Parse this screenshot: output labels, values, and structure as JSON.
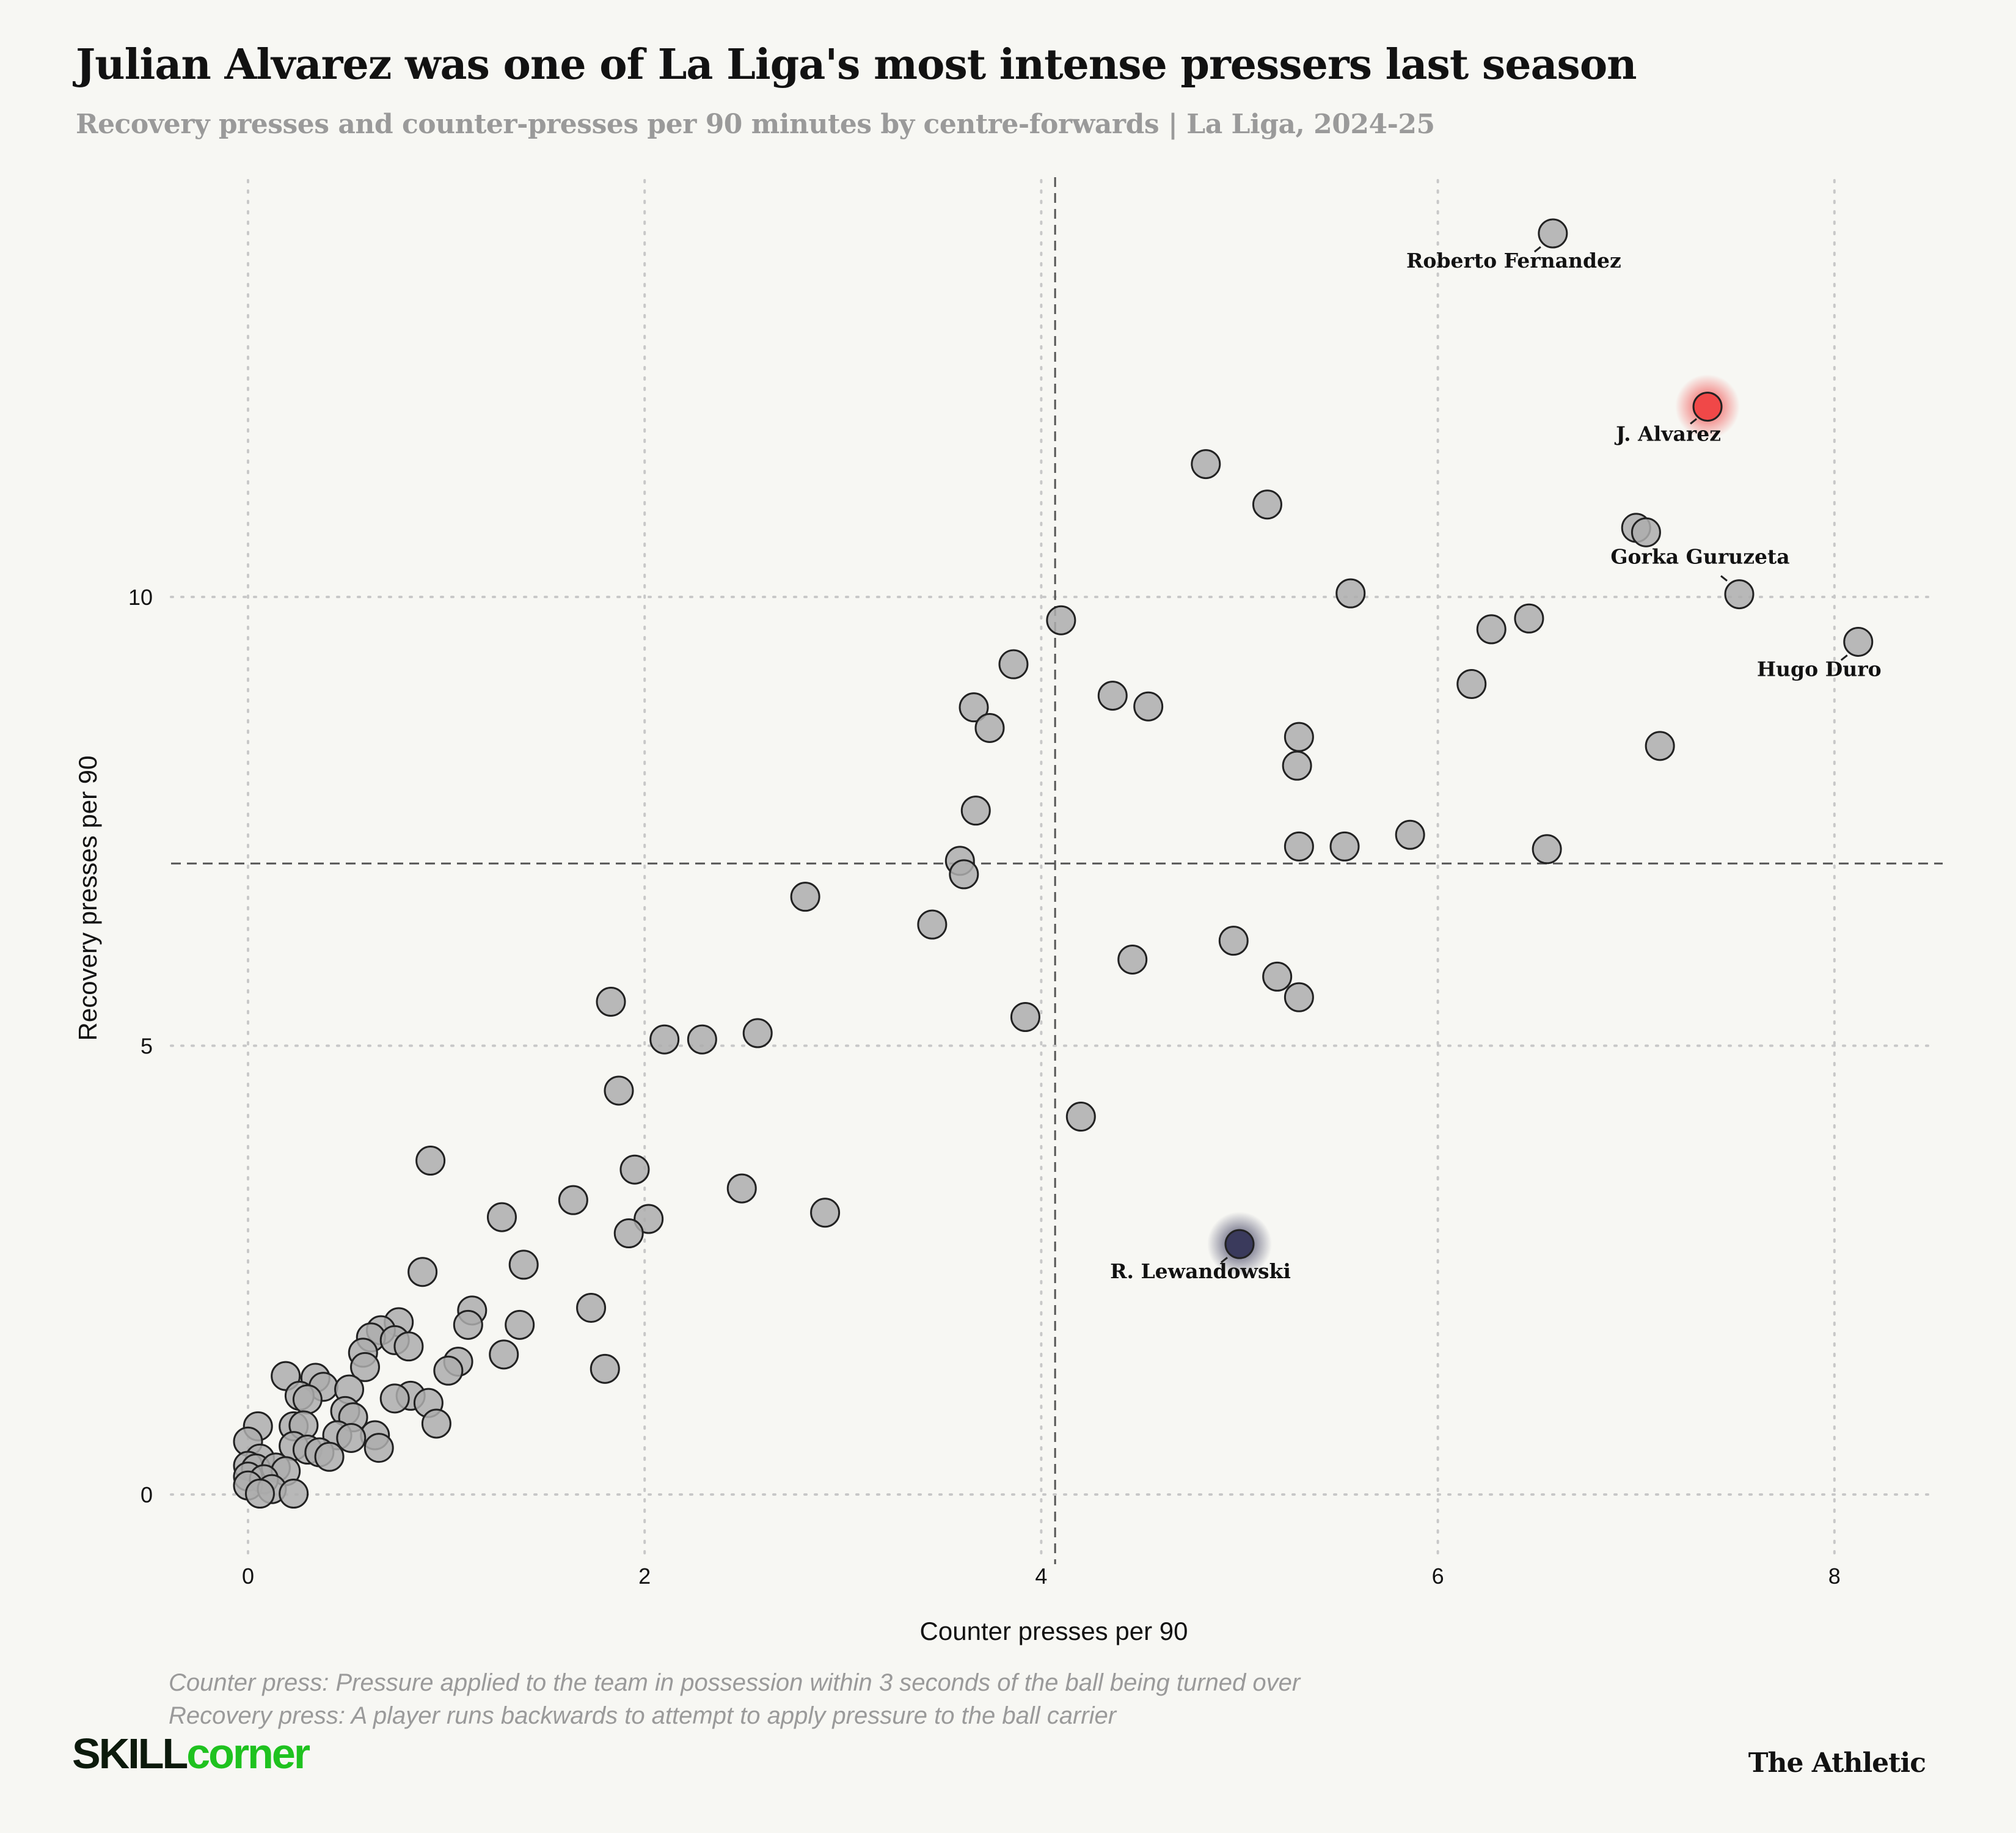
{
  "title": "Julian Alvarez was one of La Liga's most intense pressers last season",
  "subtitle": "Recovery presses and counter-presses per 90 minutes by centre-forwards | La Liga, 2024-25",
  "footnotes": [
    "Counter press: Pressure applied to the team in possession within 3 seconds of the ball being turned over",
    "Recovery press: A player runs backwards to attempt to apply pressure to the ball carrier"
  ],
  "logos": {
    "skillcorner_a": "SKILL",
    "skillcorner_b": "corner",
    "athletic": "The Athletic"
  },
  "colors": {
    "point": "#adadad",
    "highlight_red": "#f04848",
    "highlight_navy": "#3a3a5c",
    "brand_green": "#1fc21f"
  },
  "chart_data": {
    "type": "scatter",
    "xlabel": "Counter presses per 90",
    "ylabel": "Recovery presses per 90",
    "xlim": [
      -0.4,
      8.5
    ],
    "ylim": [
      -0.6,
      14.5
    ],
    "xticks": [
      0,
      2,
      4,
      6,
      8
    ],
    "yticks": [
      0,
      5,
      10
    ],
    "grid": true,
    "mean_lines": {
      "x": 4.07,
      "y": 7.03
    },
    "labeled_points": [
      {
        "name": "Roberto Fernandez",
        "x": 6.58,
        "y": 14.05,
        "highlight": "none"
      },
      {
        "name": "J. Alvarez",
        "x": 7.36,
        "y": 12.12,
        "highlight": "red"
      },
      {
        "name": "Gorka Guruzeta",
        "x": 7.52,
        "y": 10.03,
        "highlight": "none"
      },
      {
        "name": "Hugo Duro",
        "x": 8.12,
        "y": 9.5,
        "highlight": "none"
      },
      {
        "name": "R. Lewandowski",
        "x": 5.0,
        "y": 2.79,
        "highlight": "navy"
      }
    ],
    "points": [
      [
        4.83,
        11.48
      ],
      [
        5.14,
        11.03
      ],
      [
        7.0,
        10.77
      ],
      [
        7.05,
        10.72
      ],
      [
        5.56,
        10.04
      ],
      [
        6.46,
        9.76
      ],
      [
        6.27,
        9.64
      ],
      [
        4.1,
        9.74
      ],
      [
        3.86,
        9.25
      ],
      [
        6.17,
        9.03
      ],
      [
        4.36,
        8.9
      ],
      [
        4.54,
        8.78
      ],
      [
        3.66,
        8.77
      ],
      [
        3.74,
        8.54
      ],
      [
        5.3,
        8.44
      ],
      [
        5.29,
        8.12
      ],
      [
        7.12,
        8.34
      ],
      [
        3.67,
        7.62
      ],
      [
        5.86,
        7.35
      ],
      [
        5.3,
        7.22
      ],
      [
        5.53,
        7.22
      ],
      [
        6.55,
        7.19
      ],
      [
        3.59,
        7.06
      ],
      [
        3.61,
        6.91
      ],
      [
        2.81,
        6.66
      ],
      [
        3.45,
        6.35
      ],
      [
        4.97,
        6.17
      ],
      [
        4.46,
        5.96
      ],
      [
        5.19,
        5.77
      ],
      [
        5.3,
        5.54
      ],
      [
        1.83,
        5.49
      ],
      [
        3.92,
        5.32
      ],
      [
        2.1,
        5.07
      ],
      [
        2.29,
        5.07
      ],
      [
        2.57,
        5.14
      ],
      [
        1.87,
        4.5
      ],
      [
        4.2,
        4.21
      ],
      [
        0.92,
        3.72
      ],
      [
        1.95,
        3.62
      ],
      [
        2.49,
        3.41
      ],
      [
        1.64,
        3.28
      ],
      [
        1.28,
        3.09
      ],
      [
        2.91,
        3.14
      ],
      [
        2.02,
        3.07
      ],
      [
        1.92,
        2.91
      ],
      [
        1.39,
        2.56
      ],
      [
        0.88,
        2.48
      ],
      [
        1.73,
        2.08
      ],
      [
        1.13,
        2.05
      ],
      [
        1.11,
        1.89
      ],
      [
        0.76,
        1.92
      ],
      [
        1.37,
        1.89
      ],
      [
        0.67,
        1.83
      ],
      [
        0.62,
        1.75
      ],
      [
        0.74,
        1.72
      ],
      [
        0.81,
        1.65
      ],
      [
        0.58,
        1.58
      ],
      [
        1.29,
        1.56
      ],
      [
        1.06,
        1.48
      ],
      [
        0.59,
        1.42
      ],
      [
        1.01,
        1.38
      ],
      [
        1.8,
        1.4
      ],
      [
        0.19,
        1.32
      ],
      [
        0.34,
        1.3
      ],
      [
        0.38,
        1.2
      ],
      [
        0.51,
        1.17
      ],
      [
        0.26,
        1.1
      ],
      [
        0.3,
        1.06
      ],
      [
        0.82,
        1.1
      ],
      [
        0.74,
        1.07
      ],
      [
        0.91,
        1.02
      ],
      [
        0.49,
        0.93
      ],
      [
        0.53,
        0.86
      ],
      [
        0.05,
        0.76
      ],
      [
        0.23,
        0.76
      ],
      [
        0.28,
        0.77
      ],
      [
        0.95,
        0.79
      ],
      [
        0.45,
        0.66
      ],
      [
        0.64,
        0.66
      ],
      [
        0.52,
        0.63
      ],
      [
        0.0,
        0.59
      ],
      [
        0.23,
        0.54
      ],
      [
        0.66,
        0.52
      ],
      [
        0.3,
        0.5
      ],
      [
        0.36,
        0.47
      ],
      [
        0.41,
        0.42
      ],
      [
        0.06,
        0.4
      ],
      [
        0.0,
        0.32
      ],
      [
        0.04,
        0.29
      ],
      [
        0.14,
        0.3
      ],
      [
        0.19,
        0.26
      ],
      [
        0.0,
        0.2
      ],
      [
        0.08,
        0.17
      ],
      [
        0.0,
        0.1
      ],
      [
        0.12,
        0.06
      ],
      [
        0.06,
        0.01
      ],
      [
        0.23,
        0.01
      ]
    ]
  }
}
